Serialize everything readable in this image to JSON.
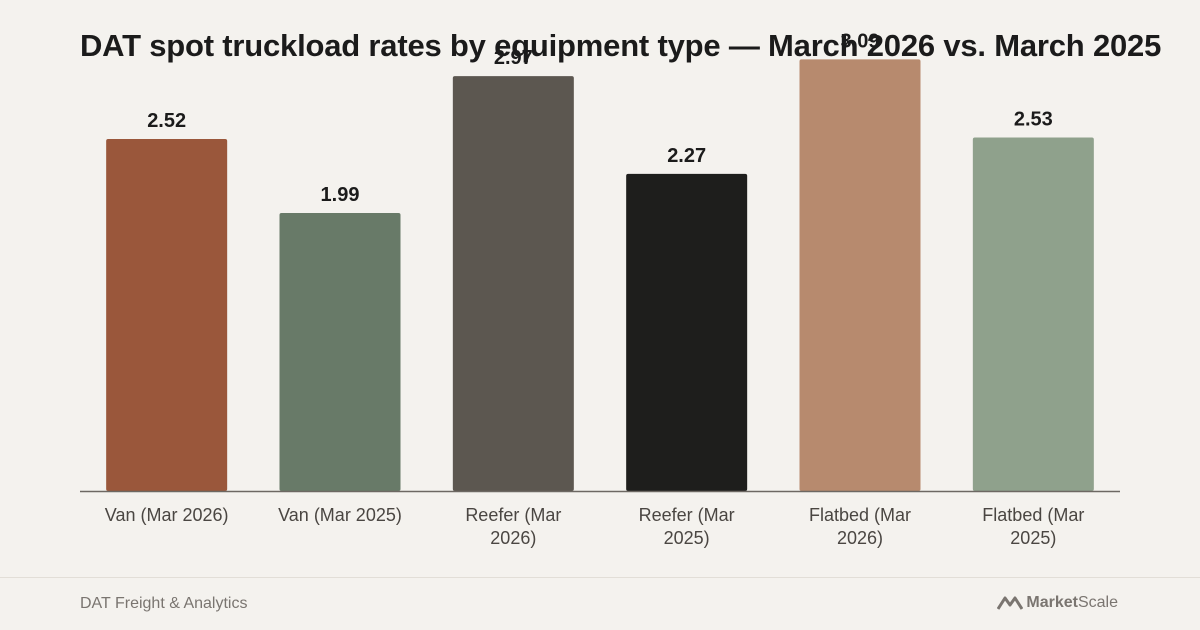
{
  "chart_data": {
    "type": "bar",
    "title": "DAT spot truckload rates by equipment type — March 2026 vs. March 2025",
    "categories": [
      "Van (Mar 2026)",
      "Van (Mar 2025)",
      "Reefer (Mar 2026)",
      "Reefer (Mar 2025)",
      "Flatbed (Mar 2026)",
      "Flatbed (Mar 2025)"
    ],
    "tick_labels": [
      [
        "Van (Mar 2026)"
      ],
      [
        "Van (Mar 2025)"
      ],
      [
        "Reefer (Mar",
        "2026)"
      ],
      [
        "Reefer (Mar",
        "2025)"
      ],
      [
        "Flatbed (Mar",
        "2026)"
      ],
      [
        "Flatbed (Mar",
        "2025)"
      ]
    ],
    "values": [
      2.52,
      1.99,
      2.97,
      2.27,
      3.09,
      2.53
    ],
    "value_labels": [
      "2.52",
      "1.99",
      "2.97",
      "2.27",
      "3.09",
      "2.53"
    ],
    "colors": [
      "#9a573b",
      "#687a68",
      "#5c5750",
      "#1e1e1c",
      "#b78a6e",
      "#8fa18c"
    ],
    "xlabel": "",
    "ylabel": "",
    "ylim": [
      0,
      3.2
    ],
    "grid": false,
    "legend": "none"
  },
  "footer": {
    "source": "DAT Freight & Analytics",
    "brand_bold": "Market",
    "brand_light": "Scale"
  }
}
